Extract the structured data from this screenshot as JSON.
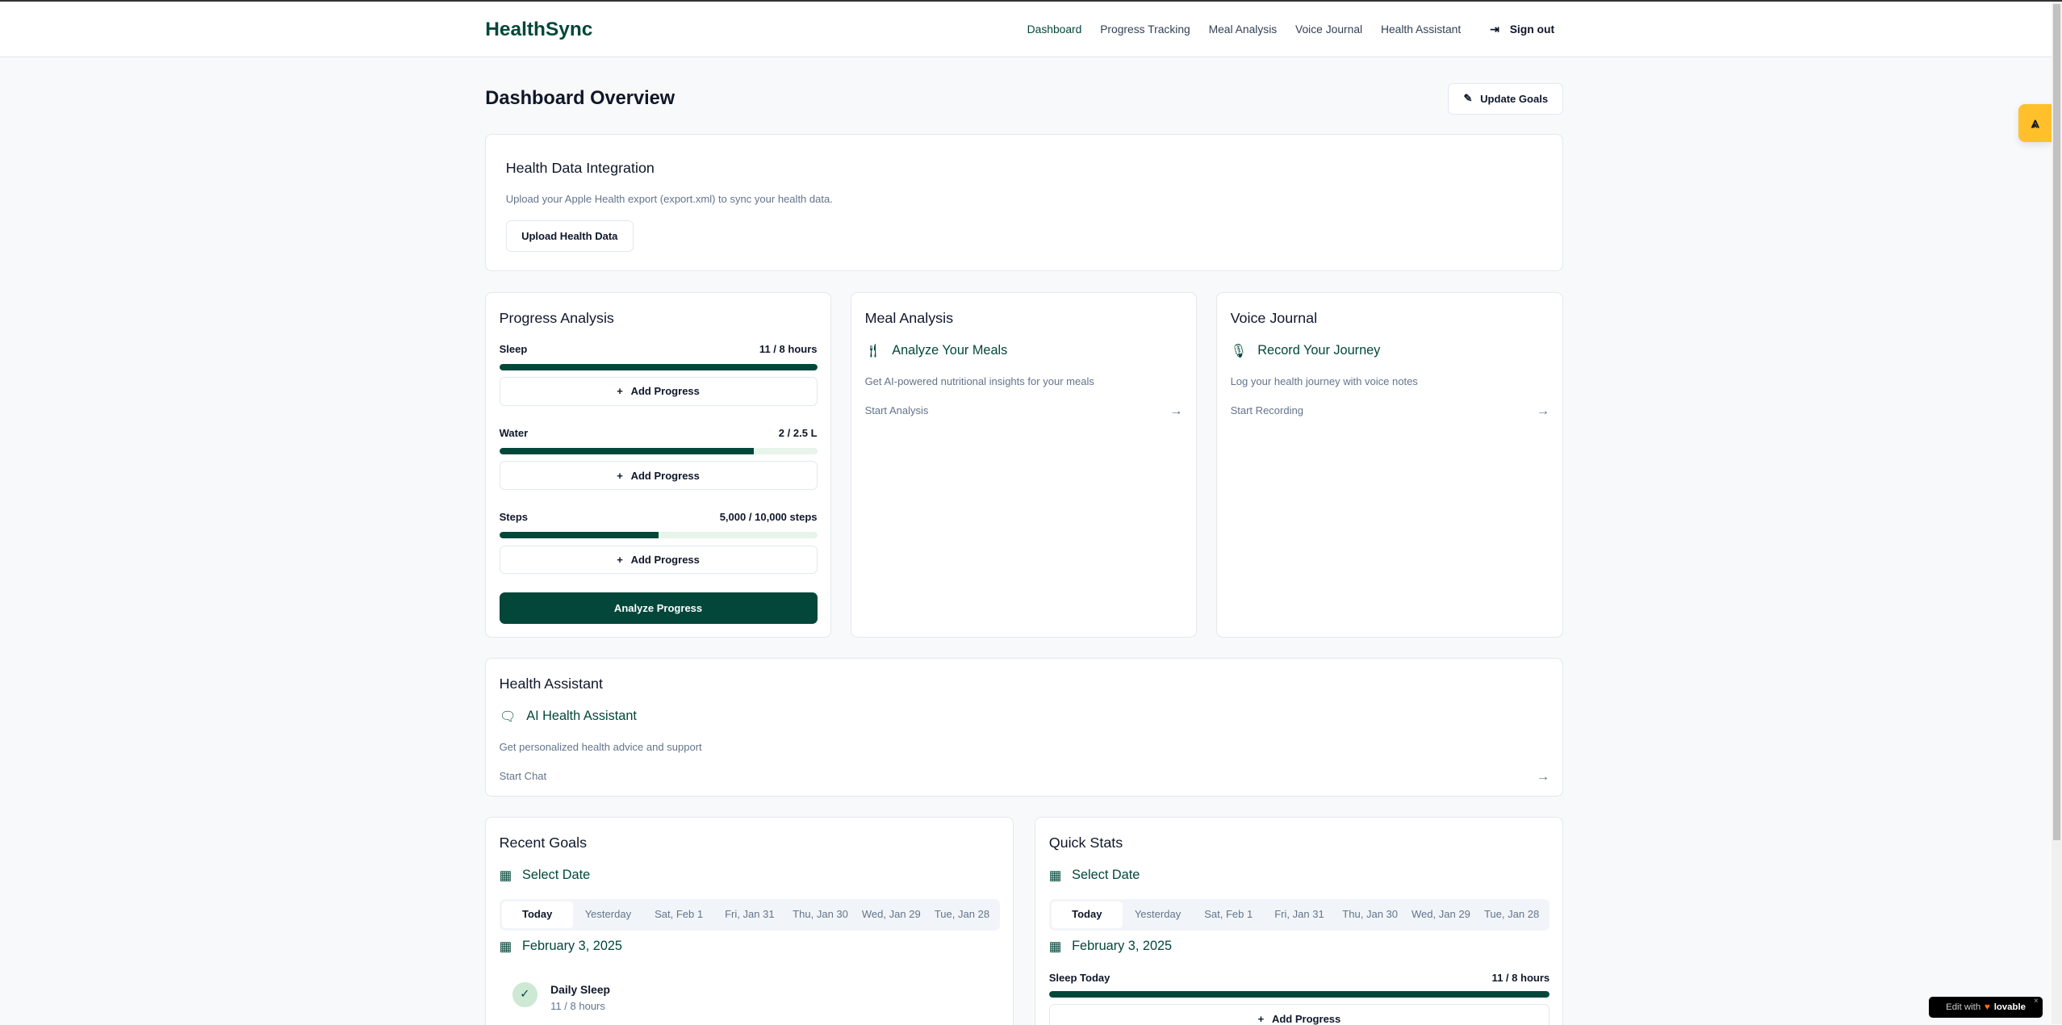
{
  "header": {
    "logo": "HealthSync",
    "nav": [
      "Dashboard",
      "Progress Tracking",
      "Meal Analysis",
      "Voice Journal",
      "Health Assistant"
    ],
    "active": "Dashboard",
    "sign_out": "Sign out"
  },
  "page": {
    "title": "Dashboard Overview",
    "update_goals": "Update Goals"
  },
  "integration": {
    "title": "Health Data Integration",
    "description": "Upload your Apple Health export (export.xml) to sync your health data.",
    "upload_button": "Upload Health Data"
  },
  "progress": {
    "title": "Progress Analysis",
    "items": [
      {
        "label": "Sleep",
        "value": "11 / 8 hours",
        "percent": 100
      },
      {
        "label": "Water",
        "value": "2 / 2.5 L",
        "percent": 80
      },
      {
        "label": "Steps",
        "value": "5,000 / 10,000 steps",
        "percent": 50
      }
    ],
    "add_label": "Add Progress",
    "analyze": "Analyze Progress"
  },
  "meal": {
    "title": "Meal Analysis",
    "heading": "Analyze Your Meals",
    "description": "Get AI-powered nutritional insights for your meals",
    "action": "Start Analysis"
  },
  "voice": {
    "title": "Voice Journal",
    "heading": "Record Your Journey",
    "description": "Log your health journey with voice notes",
    "action": "Start Recording"
  },
  "assistant": {
    "title": "Health Assistant",
    "heading": "AI Health Assistant",
    "description": "Get personalized health advice and support",
    "action": "Start Chat"
  },
  "date_tabs": [
    "Today",
    "Yesterday",
    "Sat, Feb 1",
    "Fri, Jan 31",
    "Thu, Jan 30",
    "Wed, Jan 29",
    "Tue, Jan 28"
  ],
  "recent_goals": {
    "title": "Recent Goals",
    "select_date": "Select Date",
    "date": "February 3, 2025",
    "goal": {
      "name": "Daily Sleep",
      "value": "11 / 8 hours"
    }
  },
  "quick_stats": {
    "title": "Quick Stats",
    "select_date": "Select Date",
    "date": "February 3, 2025",
    "stat": {
      "label": "Sleep Today",
      "value": "11 / 8 hours",
      "percent": 100
    },
    "add_label": "Add Progress"
  },
  "badge": {
    "text": "Edit with",
    "brand": "lovable"
  },
  "colors": {
    "brand": "#03473a",
    "widget": "#ffc02b"
  }
}
